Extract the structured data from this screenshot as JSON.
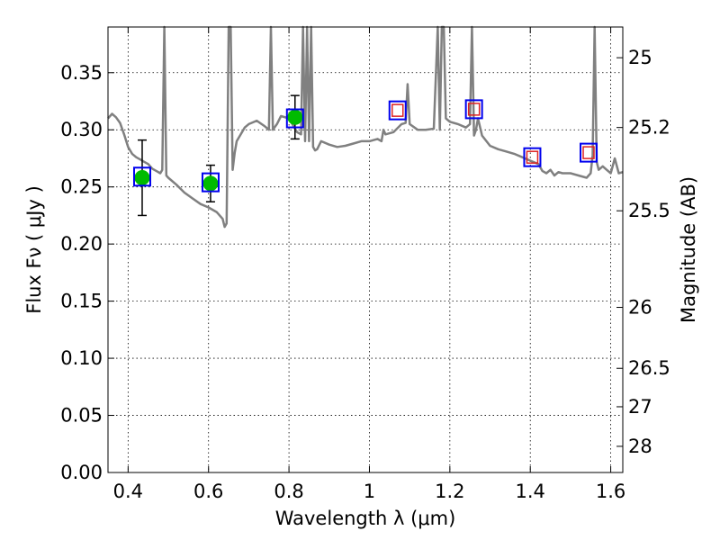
{
  "chart_data": {
    "type": "scatter",
    "xlabel": "Wavelength  λ (μm)",
    "ylabel": "Flux  Fν  ( μJy )",
    "y2label": "Magnitude (AB)",
    "xlim": [
      0.35,
      1.63
    ],
    "ylim": [
      0.0,
      0.39
    ],
    "xticks": [
      0.4,
      0.6,
      0.8,
      1.0,
      1.2,
      1.4,
      1.6
    ],
    "xtick_labels": [
      "0.4",
      "0.6",
      "0.8",
      "1",
      "1.2",
      "1.4",
      "1.6"
    ],
    "yticks": [
      0.0,
      0.05,
      0.1,
      0.15,
      0.2,
      0.25,
      0.3,
      0.35
    ],
    "ytick_labels": [
      "0.00",
      "0.05",
      "0.10",
      "0.15",
      "0.20",
      "0.25",
      "0.30",
      "0.35"
    ],
    "mag_ticks": [
      25,
      25.2,
      25.5,
      26,
      26.5,
      27,
      28
    ],
    "mag_tick_labels": [
      "25",
      "25.2",
      "25.5",
      "26",
      "26.5",
      "27",
      "28"
    ],
    "grid": true,
    "colors": {
      "sed": "#808080",
      "observed": "#00bb00",
      "model_box": "#0000ee",
      "synthetic_box": "#dd2222",
      "errorbar": "#000000"
    },
    "sed_curve": {
      "x": [
        0.35,
        0.36,
        0.37,
        0.38,
        0.39,
        0.4,
        0.41,
        0.42,
        0.43,
        0.44,
        0.45,
        0.46,
        0.47,
        0.48,
        0.485,
        0.49,
        0.495,
        0.5,
        0.52,
        0.54,
        0.56,
        0.58,
        0.6,
        0.62,
        0.635,
        0.64,
        0.645,
        0.65,
        0.655,
        0.66,
        0.665,
        0.67,
        0.68,
        0.69,
        0.7,
        0.72,
        0.74,
        0.75,
        0.755,
        0.76,
        0.77,
        0.78,
        0.8,
        0.82,
        0.83,
        0.835,
        0.84,
        0.845,
        0.85,
        0.855,
        0.86,
        0.865,
        0.87,
        0.88,
        0.9,
        0.92,
        0.94,
        0.96,
        0.98,
        1.0,
        1.02,
        1.03,
        1.035,
        1.04,
        1.06,
        1.08,
        1.09,
        1.095,
        1.1,
        1.12,
        1.14,
        1.16,
        1.17,
        1.175,
        1.18,
        1.185,
        1.19,
        1.2,
        1.22,
        1.24,
        1.25,
        1.255,
        1.26,
        1.265,
        1.27,
        1.28,
        1.3,
        1.32,
        1.34,
        1.36,
        1.38,
        1.4,
        1.42,
        1.43,
        1.44,
        1.45,
        1.46,
        1.47,
        1.48,
        1.5,
        1.52,
        1.54,
        1.55,
        1.555,
        1.56,
        1.565,
        1.57,
        1.58,
        1.59,
        1.6,
        1.61,
        1.62,
        1.63
      ],
      "y": [
        0.31,
        0.314,
        0.311,
        0.306,
        0.296,
        0.285,
        0.279,
        0.276,
        0.274,
        0.272,
        0.27,
        0.266,
        0.264,
        0.262,
        0.265,
        0.39,
        0.26,
        0.258,
        0.252,
        0.245,
        0.24,
        0.235,
        0.232,
        0.228,
        0.222,
        0.215,
        0.218,
        0.39,
        0.39,
        0.265,
        0.28,
        0.29,
        0.296,
        0.302,
        0.305,
        0.308,
        0.303,
        0.3,
        0.39,
        0.3,
        0.305,
        0.312,
        0.31,
        0.298,
        0.296,
        0.39,
        0.29,
        0.39,
        0.29,
        0.39,
        0.285,
        0.282,
        0.283,
        0.29,
        0.287,
        0.285,
        0.286,
        0.288,
        0.29,
        0.29,
        0.292,
        0.29,
        0.3,
        0.296,
        0.298,
        0.305,
        0.306,
        0.34,
        0.305,
        0.3,
        0.3,
        0.301,
        0.39,
        0.3,
        0.39,
        0.39,
        0.31,
        0.307,
        0.305,
        0.302,
        0.305,
        0.39,
        0.295,
        0.3,
        0.31,
        0.295,
        0.286,
        0.283,
        0.281,
        0.279,
        0.276,
        0.273,
        0.27,
        0.264,
        0.262,
        0.265,
        0.26,
        0.263,
        0.262,
        0.262,
        0.26,
        0.258,
        0.262,
        0.278,
        0.39,
        0.272,
        0.265,
        0.268,
        0.265,
        0.262,
        0.275,
        0.262,
        0.263
      ]
    },
    "series": [
      {
        "marker": "circle",
        "x": [
          0.435,
          0.605,
          0.815
        ],
        "y": [
          0.258,
          0.253,
          0.311
        ],
        "yerr": [
          0.033,
          0.016,
          0.019
        ]
      },
      {
        "marker": "open-square",
        "x": [
          0.435,
          0.605,
          0.815,
          1.07,
          1.26,
          1.405,
          1.545
        ],
        "y": [
          0.259,
          0.254,
          0.31,
          0.317,
          0.318,
          0.276,
          0.28
        ]
      },
      {
        "marker": "small-open-square",
        "x": [
          1.07,
          1.26,
          1.405,
          1.545
        ],
        "y": [
          0.317,
          0.318,
          0.276,
          0.28
        ]
      }
    ]
  }
}
